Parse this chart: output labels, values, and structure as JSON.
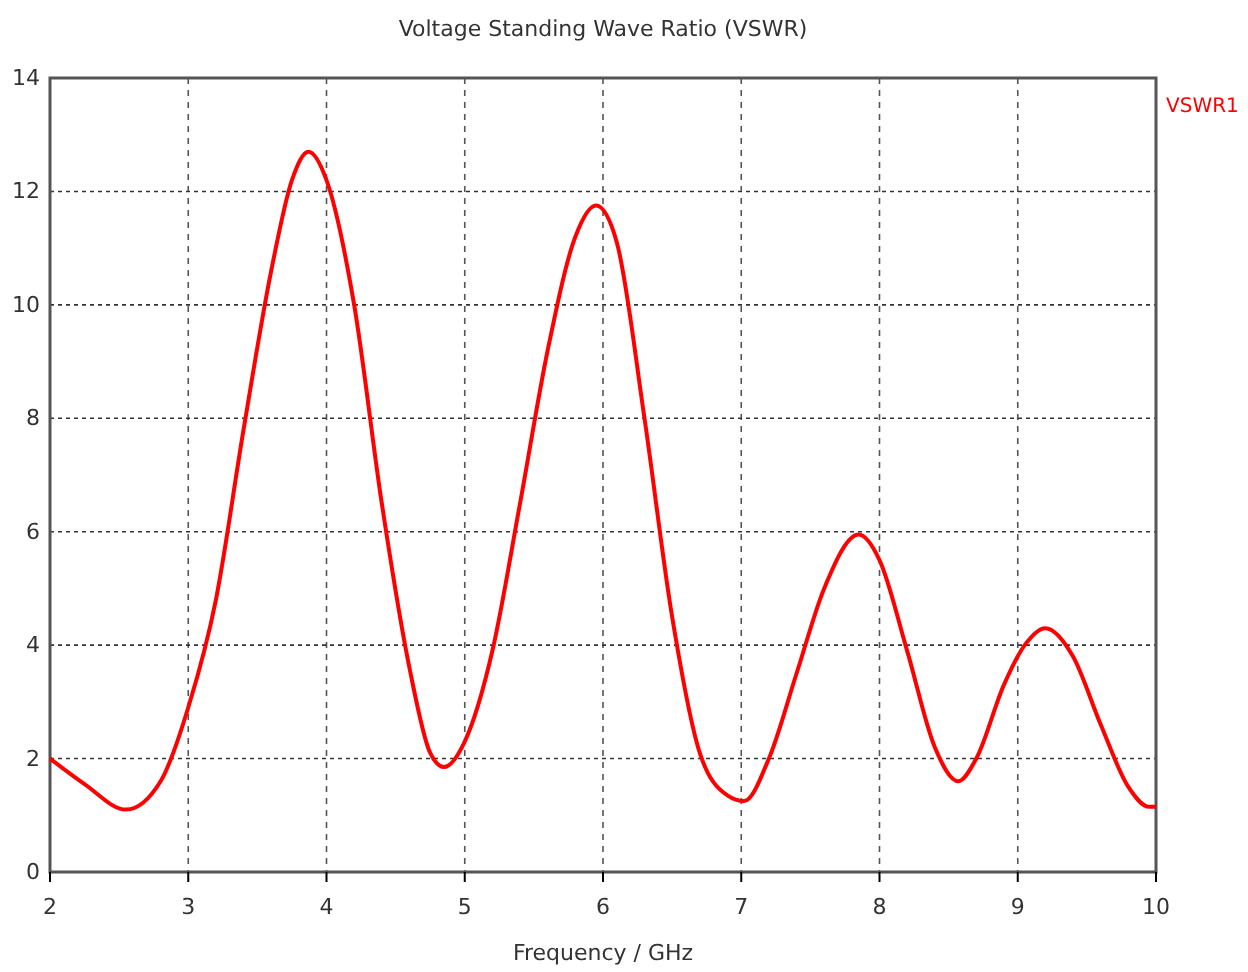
{
  "chart_data": {
    "type": "line",
    "title": "Voltage Standing Wave Ratio (VSWR)",
    "xlabel": "Frequency / GHz",
    "x": [
      2,
      2.25,
      2.55,
      2.8,
      3.0,
      3.2,
      3.4,
      3.6,
      3.75,
      3.87,
      4.0,
      4.2,
      4.4,
      4.6,
      4.75,
      4.85,
      5.0,
      5.2,
      5.4,
      5.6,
      5.8,
      5.95,
      6.1,
      6.3,
      6.5,
      6.7,
      6.9,
      7.02,
      7.2,
      7.4,
      7.6,
      7.85,
      8.0,
      8.2,
      8.4,
      8.57,
      8.7,
      8.9,
      9.05,
      9.2,
      9.4,
      9.6,
      9.8,
      9.95,
      10
    ],
    "series": [
      {
        "name": "VSWR1",
        "color": "#ff0000",
        "values": [
          2.0,
          1.55,
          1.1,
          1.6,
          2.9,
          4.8,
          7.8,
          10.6,
          12.2,
          12.7,
          12.2,
          10.0,
          6.5,
          3.6,
          2.1,
          1.85,
          2.3,
          3.9,
          6.5,
          9.2,
          11.2,
          11.75,
          11.1,
          8.0,
          4.5,
          2.1,
          1.35,
          1.25,
          2.0,
          3.5,
          5.0,
          5.95,
          5.5,
          3.9,
          2.2,
          1.6,
          2.0,
          3.3,
          4.0,
          4.3,
          3.8,
          2.6,
          1.5,
          1.15,
          1.15
        ]
      }
    ],
    "xlim": [
      2,
      10
    ],
    "xticks": [
      2,
      3,
      4,
      5,
      6,
      7,
      8,
      9,
      10
    ],
    "ylim": [
      0,
      14
    ],
    "yticks": [
      0,
      2,
      4,
      6,
      8,
      10,
      12,
      14
    ],
    "grid": true,
    "legend": "top right",
    "line_style": "solid",
    "marker": "none"
  }
}
